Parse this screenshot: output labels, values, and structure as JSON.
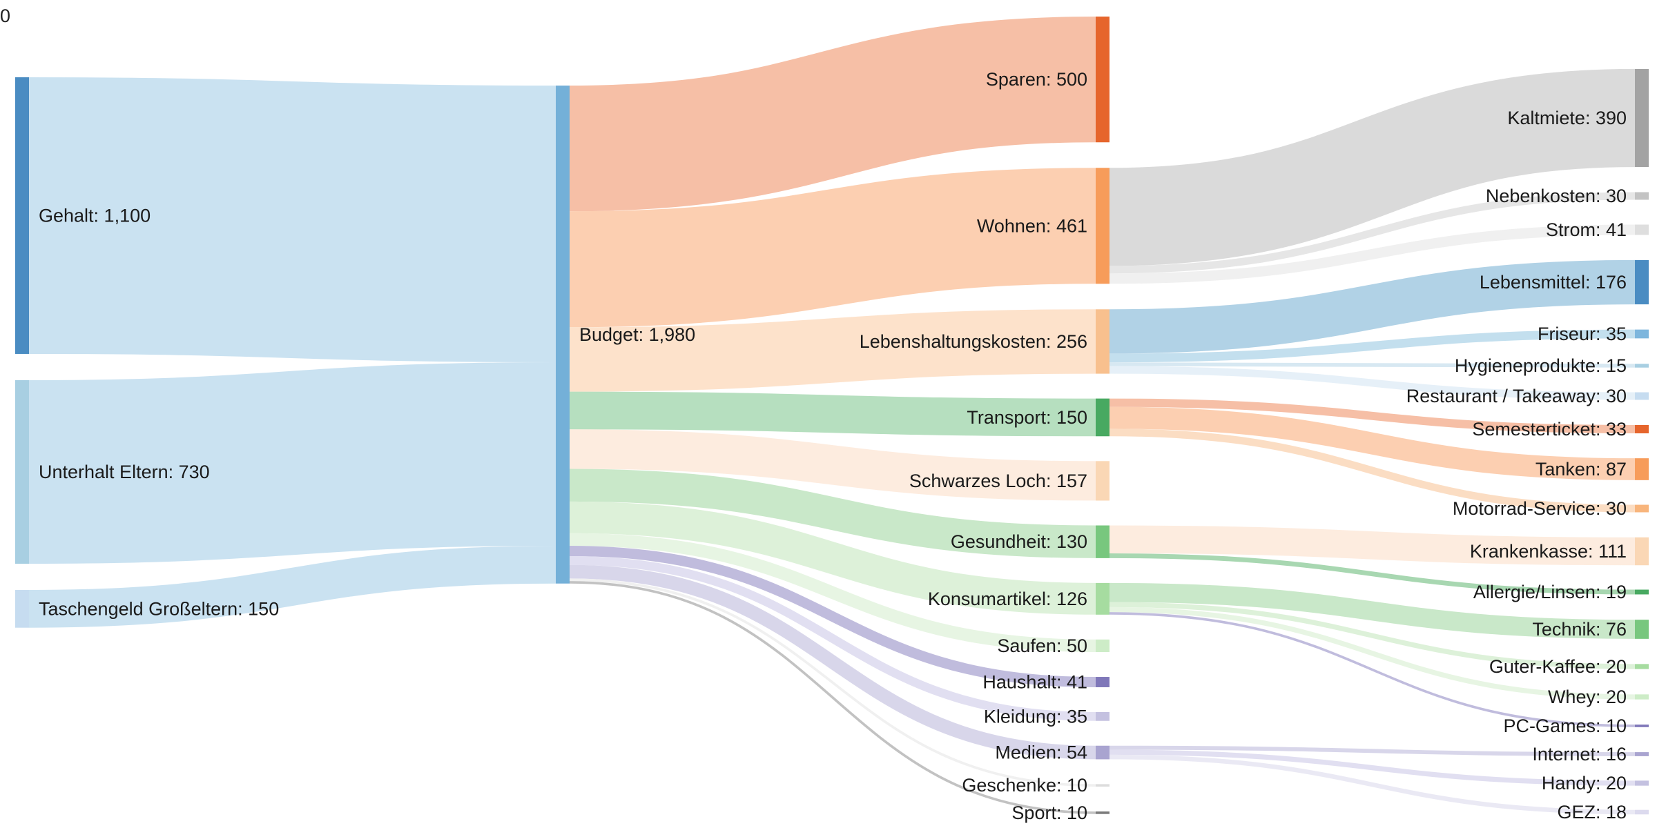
{
  "chart_data": {
    "type": "sankey",
    "corner_text": "0",
    "nodes": [
      {
        "id": "Gehalt",
        "label": "Gehalt: 1,100",
        "value": 1100,
        "color": "#4a8cc2"
      },
      {
        "id": "Unterhalt Eltern",
        "label": "Unterhalt Eltern: 730",
        "value": 730,
        "color": "#a8cfe2"
      },
      {
        "id": "Taschengeld Großeltern",
        "label": "Taschengeld Großeltern: 150",
        "value": 150,
        "color": "#c6dcf0"
      },
      {
        "id": "Budget",
        "label": "Budget: 1,980",
        "value": 1980,
        "color": "#74b0d8"
      },
      {
        "id": "Sparen",
        "label": "Sparen: 500",
        "value": 500,
        "color": "#e6652c"
      },
      {
        "id": "Wohnen",
        "label": "Wohnen: 461",
        "value": 461,
        "color": "#f79c5a"
      },
      {
        "id": "Lebenshaltungskosten",
        "label": "Lebenshaltungskosten: 256",
        "value": 256,
        "color": "#f8c08e"
      },
      {
        "id": "Transport",
        "label": "Transport: 150",
        "value": 150,
        "color": "#48a961"
      },
      {
        "id": "Schwarzes Loch",
        "label": "Schwarzes Loch: 157",
        "value": 157,
        "color": "#fad7b5"
      },
      {
        "id": "Gesundheit",
        "label": "Gesundheit: 130",
        "value": 130,
        "color": "#78c77e"
      },
      {
        "id": "Konsumartikel",
        "label": "Konsumartikel: 126",
        "value": 126,
        "color": "#a6dca0"
      },
      {
        "id": "Saufen",
        "label": "Saufen: 50",
        "value": 50,
        "color": "#cdecc7"
      },
      {
        "id": "Haushalt",
        "label": "Haushalt: 41",
        "value": 41,
        "color": "#7f77b9"
      },
      {
        "id": "Kleidung",
        "label": "Kleidung: 35",
        "value": 35,
        "color": "#c4c1e0"
      },
      {
        "id": "Medien",
        "label": "Medien: 54",
        "value": 54,
        "color": "#a9a4d0"
      },
      {
        "id": "Geschenke",
        "label": "Geschenke: 10",
        "value": 10,
        "color": "#dcdcdc"
      },
      {
        "id": "Sport",
        "label": "Sport: 10",
        "value": 10,
        "color": "#7a7a7a"
      },
      {
        "id": "Kaltmiete",
        "label": "Kaltmiete: 390",
        "value": 390,
        "color": "#a3a3a3"
      },
      {
        "id": "Nebenkosten",
        "label": "Nebenkosten: 30",
        "value": 30,
        "color": "#c3c3c3"
      },
      {
        "id": "Strom",
        "label": "Strom: 41",
        "value": 41,
        "color": "#dedede"
      },
      {
        "id": "Lebensmittel",
        "label": "Lebensmittel: 176",
        "value": 176,
        "color": "#4a8cc2"
      },
      {
        "id": "Friseur",
        "label": "Friseur: 35",
        "value": 35,
        "color": "#7db6dd"
      },
      {
        "id": "Hygieneprodukte",
        "label": "Hygieneprodukte: 15",
        "value": 15,
        "color": "#a8cfe2"
      },
      {
        "id": "Restaurant / Takeaway",
        "label": "Restaurant / Takeaway: 30",
        "value": 30,
        "color": "#c6dcf0"
      },
      {
        "id": "Semesterticket",
        "label": "Semesterticket: 33",
        "value": 33,
        "color": "#e6652c"
      },
      {
        "id": "Tanken",
        "label": "Tanken: 87",
        "value": 87,
        "color": "#f79c5a"
      },
      {
        "id": "Motorrad-Service",
        "label": "Motorrad-Service: 30",
        "value": 30,
        "color": "#f8b57c"
      },
      {
        "id": "Krankenkasse",
        "label": "Krankenkasse: 111",
        "value": 111,
        "color": "#fad7b5"
      },
      {
        "id": "Allergie/Linsen",
        "label": "Allergie/Linsen: 19",
        "value": 19,
        "color": "#48a961"
      },
      {
        "id": "Technik",
        "label": "Technik: 76",
        "value": 76,
        "color": "#78c77e"
      },
      {
        "id": "Guter-Kaffee",
        "label": "Guter-Kaffee: 20",
        "value": 20,
        "color": "#a6dca0"
      },
      {
        "id": "Whey",
        "label": "Whey: 20",
        "value": 20,
        "color": "#cdecc7"
      },
      {
        "id": "PC-Games",
        "label": "PC-Games: 10",
        "value": 10,
        "color": "#7f77b9"
      },
      {
        "id": "Internet",
        "label": "Internet: 16",
        "value": 16,
        "color": "#a9a4d0"
      },
      {
        "id": "Handy",
        "label": "Handy: 20",
        "value": 20,
        "color": "#c4c1e0"
      },
      {
        "id": "GEZ",
        "label": "GEZ: 18",
        "value": 18,
        "color": "#dcdaee"
      }
    ],
    "links": [
      {
        "source": "Gehalt",
        "target": "Budget",
        "value": 1100,
        "color": "#c4dfef"
      },
      {
        "source": "Unterhalt Eltern",
        "target": "Budget",
        "value": 730,
        "color": "#c4dfef"
      },
      {
        "source": "Taschengeld Großeltern",
        "target": "Budget",
        "value": 150,
        "color": "#c4dfef"
      },
      {
        "source": "Budget",
        "target": "Sparen",
        "value": 500,
        "color": "#f5b89c"
      },
      {
        "source": "Budget",
        "target": "Wohnen",
        "value": 461,
        "color": "#fccaa8"
      },
      {
        "source": "Budget",
        "target": "Lebenshaltungskosten",
        "value": 256,
        "color": "#fddfc5"
      },
      {
        "source": "Budget",
        "target": "Transport",
        "value": 150,
        "color": "#aedbb8"
      },
      {
        "source": "Budget",
        "target": "Schwarzes Loch",
        "value": 157,
        "color": "#fdeadb"
      },
      {
        "source": "Budget",
        "target": "Gesundheit",
        "value": 130,
        "color": "#c3e6c3"
      },
      {
        "source": "Budget",
        "target": "Konsumartikel",
        "value": 126,
        "color": "#d9f0d5"
      },
      {
        "source": "Budget",
        "target": "Saufen",
        "value": 50,
        "color": "#e4f4e0"
      },
      {
        "source": "Budget",
        "target": "Haushalt",
        "value": 41,
        "color": "#b9b5d9"
      },
      {
        "source": "Budget",
        "target": "Kleidung",
        "value": 35,
        "color": "#dedcef"
      },
      {
        "source": "Budget",
        "target": "Medien",
        "value": 54,
        "color": "#d4d1e8"
      },
      {
        "source": "Budget",
        "target": "Geschenke",
        "value": 10,
        "color": "#eeeeee"
      },
      {
        "source": "Budget",
        "target": "Sport",
        "value": 10,
        "color": "#bbbbbb"
      },
      {
        "source": "Wohnen",
        "target": "Kaltmiete",
        "value": 390,
        "color": "#d6d6d6"
      },
      {
        "source": "Wohnen",
        "target": "Nebenkosten",
        "value": 30,
        "color": "#e3e3e3"
      },
      {
        "source": "Wohnen",
        "target": "Strom",
        "value": 41,
        "color": "#eeeeee"
      },
      {
        "source": "Lebenshaltungskosten",
        "target": "Lebensmittel",
        "value": 176,
        "color": "#a9cde3"
      },
      {
        "source": "Lebenshaltungskosten",
        "target": "Friseur",
        "value": 35,
        "color": "#bddbec"
      },
      {
        "source": "Lebenshaltungskosten",
        "target": "Hygieneprodukte",
        "value": 15,
        "color": "#d3e6f1"
      },
      {
        "source": "Lebenshaltungskosten",
        "target": "Restaurant / Takeaway",
        "value": 30,
        "color": "#e3eef7"
      },
      {
        "source": "Transport",
        "target": "Semesterticket",
        "value": 33,
        "color": "#f5b89c"
      },
      {
        "source": "Transport",
        "target": "Tanken",
        "value": 87,
        "color": "#fccaa8"
      },
      {
        "source": "Transport",
        "target": "Motorrad-Service",
        "value": 30,
        "color": "#fbd9bd"
      },
      {
        "source": "Gesundheit",
        "target": "Krankenkasse",
        "value": 111,
        "color": "#fdeadb"
      },
      {
        "source": "Gesundheit",
        "target": "Allergie/Linsen",
        "value": 19,
        "color": "#9ed3a8"
      },
      {
        "source": "Konsumartikel",
        "target": "Technik",
        "value": 76,
        "color": "#c3e6c3"
      },
      {
        "source": "Konsumartikel",
        "target": "Guter-Kaffee",
        "value": 20,
        "color": "#d9f0d5"
      },
      {
        "source": "Konsumartikel",
        "target": "Whey",
        "value": 20,
        "color": "#e4f4e0"
      },
      {
        "source": "Konsumartikel",
        "target": "PC-Games",
        "value": 10,
        "color": "#b9b5d9"
      },
      {
        "source": "Medien",
        "target": "Internet",
        "value": 16,
        "color": "#d4d1e8"
      },
      {
        "source": "Medien",
        "target": "Handy",
        "value": 20,
        "color": "#dedcef"
      },
      {
        "source": "Medien",
        "target": "GEZ",
        "value": 18,
        "color": "#e8e7f3"
      }
    ]
  }
}
